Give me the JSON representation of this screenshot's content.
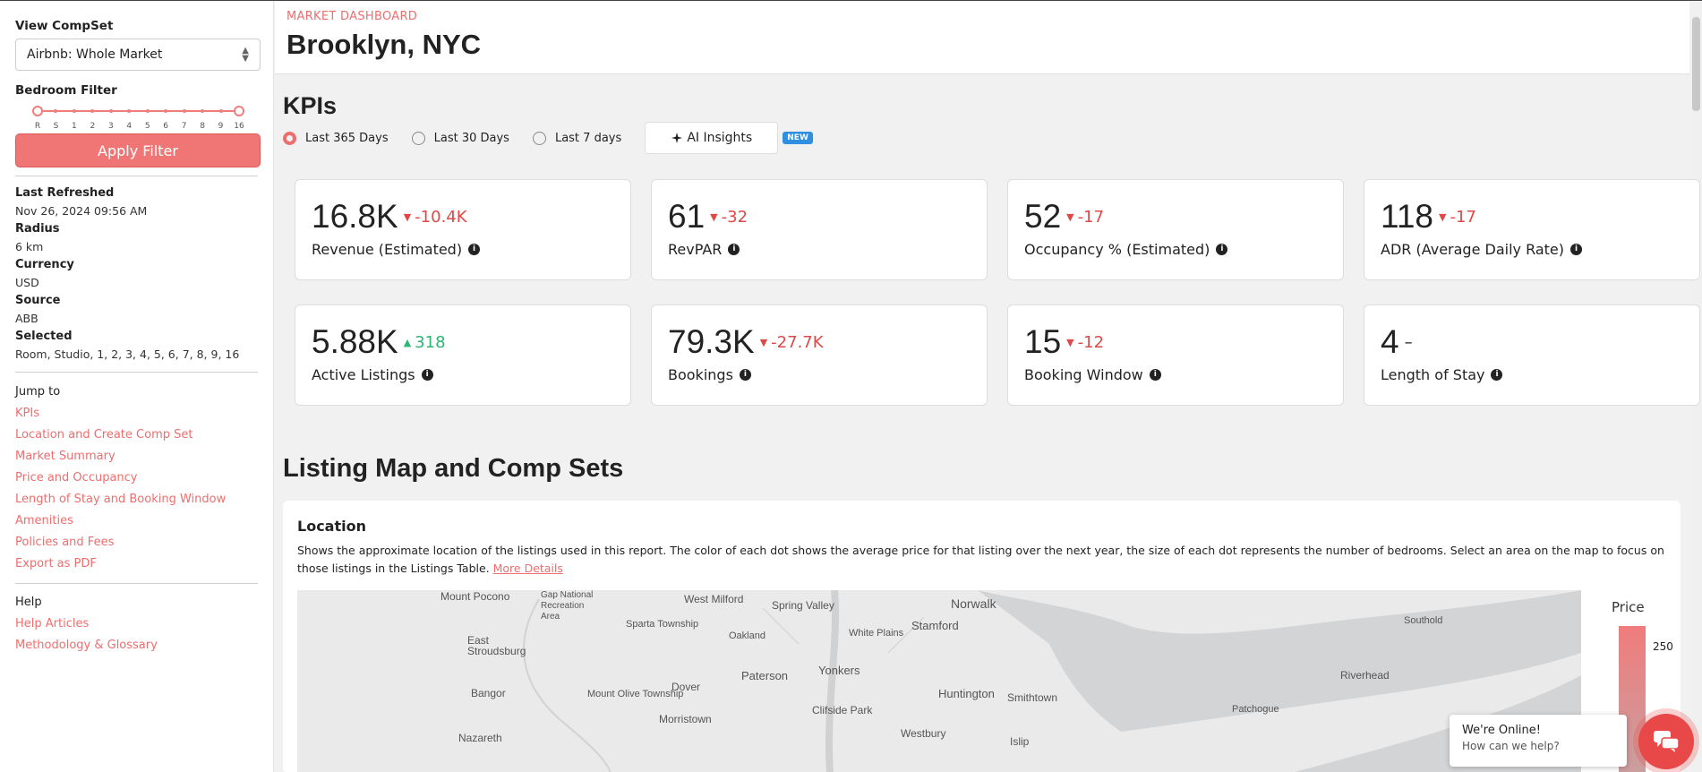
{
  "sidebar": {
    "compset_label": "View CompSet",
    "compset_value": "Airbnb: Whole Market",
    "bedroom_label": "Bedroom Filter",
    "bedroom_ticks": [
      "R",
      "S",
      "1",
      "2",
      "3",
      "4",
      "5",
      "6",
      "7",
      "8",
      "9",
      "16"
    ],
    "apply_label": "Apply Filter",
    "meta": [
      {
        "k": "Last Refreshed",
        "v": "Nov 26, 2024 09:56 AM"
      },
      {
        "k": "Radius",
        "v": "6 km"
      },
      {
        "k": "Currency",
        "v": "USD"
      },
      {
        "k": "Source",
        "v": "ABB"
      },
      {
        "k": "Selected",
        "v": "Room, Studio, 1, 2, 3, 4, 5, 6, 7, 8, 9, 16"
      }
    ],
    "jump_title": "Jump to",
    "jump_links": [
      "KPIs",
      "Location and Create Comp Set",
      "Market Summary",
      "Price and Occupancy",
      "Length of Stay and Booking Window",
      "Amenities",
      "Policies and Fees",
      "Export as PDF"
    ],
    "help_title": "Help",
    "help_links": [
      "Help Articles",
      "Methodology & Glossary"
    ]
  },
  "header": {
    "eyebrow": "MARKET DASHBOARD",
    "title": "Brooklyn, NYC"
  },
  "kpis": {
    "title": "KPIs",
    "periods": [
      "Last 365 Days",
      "Last 30 Days",
      "Last 7 days"
    ],
    "selected_period": "Last 365 Days",
    "ai_label": "AI Insights",
    "new_badge": "NEW",
    "cards": [
      {
        "value": "16.8K",
        "delta": "-10.4K",
        "dir": "down",
        "label": "Revenue (Estimated)"
      },
      {
        "value": "61",
        "delta": "-32",
        "dir": "down",
        "label": "RevPAR"
      },
      {
        "value": "52",
        "delta": "-17",
        "dir": "down",
        "label": "Occupancy % (Estimated)"
      },
      {
        "value": "118",
        "delta": "-17",
        "dir": "down",
        "label": "ADR (Average Daily Rate)"
      },
      {
        "value": "5.88K",
        "delta": "318",
        "dir": "up",
        "label": "Active Listings"
      },
      {
        "value": "79.3K",
        "delta": "-27.7K",
        "dir": "down",
        "label": "Bookings"
      },
      {
        "value": "15",
        "delta": "-12",
        "dir": "down",
        "label": "Booking Window"
      },
      {
        "value": "4",
        "delta": "–",
        "dir": "none",
        "label": "Length of Stay"
      }
    ]
  },
  "map_section": {
    "title": "Listing Map and Comp Sets",
    "location_title": "Location",
    "description": "Shows the approximate location of the listings used in this report. The color of each dot shows the average price for that listing over the next year, the size of each dot represents the number of bedrooms. Select an area on the map to focus on those listings in the Listings Table. ",
    "more_details": "More Details",
    "legend_title": "Price",
    "legend_tick": "250",
    "places": [
      "Mount Pocono",
      "Gap National Recreation Area",
      "West Milford",
      "Spring Valley",
      "Norwalk",
      "Stamford",
      "Southold",
      "East Stroudsburg",
      "Sparta Township",
      "Oakland",
      "White Plains",
      "Paterson",
      "Yonkers",
      "Riverhead",
      "Bangor",
      "Mount Olive Township",
      "Dover",
      "Huntington",
      "Smithtown",
      "Morristown",
      "Clifside Park",
      "Patchogue",
      "Nazareth",
      "Westbury",
      "Islip"
    ]
  },
  "chat": {
    "title": "We're Online!",
    "subtitle": "How can we help?"
  }
}
